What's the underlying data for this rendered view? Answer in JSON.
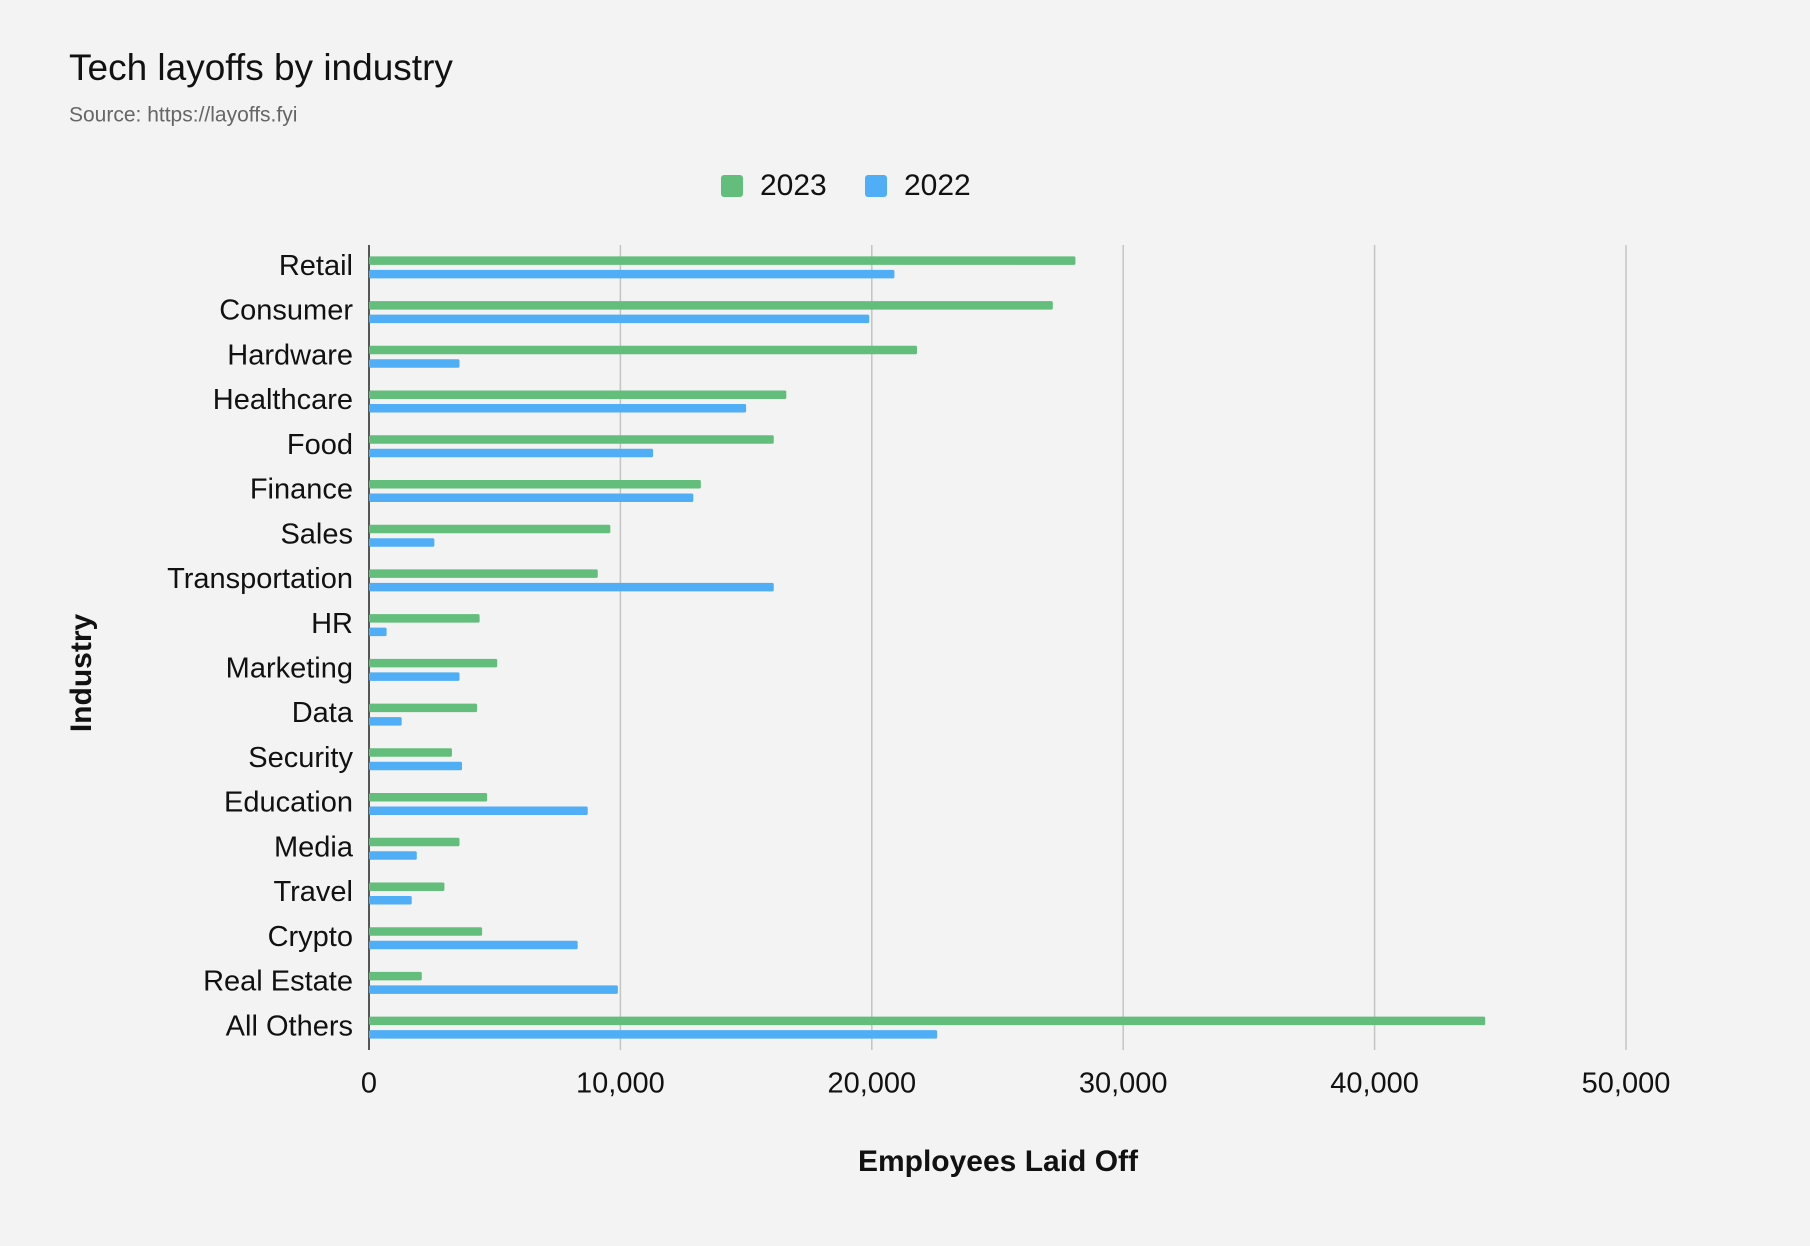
{
  "chart_data": {
    "type": "bar",
    "orientation": "horizontal",
    "title": "Tech layoffs by industry",
    "subtitle": "Source: https://layoffs.fyi",
    "x_label": "Employees Laid Off",
    "y_label": "Industry",
    "categories": [
      "Retail",
      "Consumer",
      "Hardware",
      "Healthcare",
      "Food",
      "Finance",
      "Sales",
      "Transportation",
      "HR",
      "Marketing",
      "Data",
      "Security",
      "Education",
      "Media",
      "Travel",
      "Crypto",
      "Real Estate",
      "All Others"
    ],
    "series": [
      {
        "name": "2023",
        "color": "#63be7b",
        "values": [
          28100,
          27200,
          21800,
          16600,
          16100,
          13200,
          9600,
          9100,
          4400,
          5100,
          4300,
          3300,
          4700,
          3600,
          3000,
          4500,
          2100,
          44400
        ]
      },
      {
        "name": "2022",
        "color": "#4faef5",
        "values": [
          20900,
          19900,
          3600,
          15000,
          11300,
          12900,
          2600,
          16100,
          700,
          3600,
          1300,
          3700,
          8700,
          1900,
          1700,
          8300,
          9900,
          22600
        ]
      }
    ],
    "xlim": [
      0,
      50000
    ],
    "xticks": [
      0,
      {
        "value": 10000,
        "label": "10,000"
      },
      {
        "value": 20000,
        "label": "20,000"
      },
      {
        "value": 30000,
        "label": "30,000"
      },
      {
        "value": 40000,
        "label": "40,000"
      },
      {
        "value": 50000,
        "label": "50,000"
      }
    ],
    "grid": true,
    "legend": "top"
  }
}
